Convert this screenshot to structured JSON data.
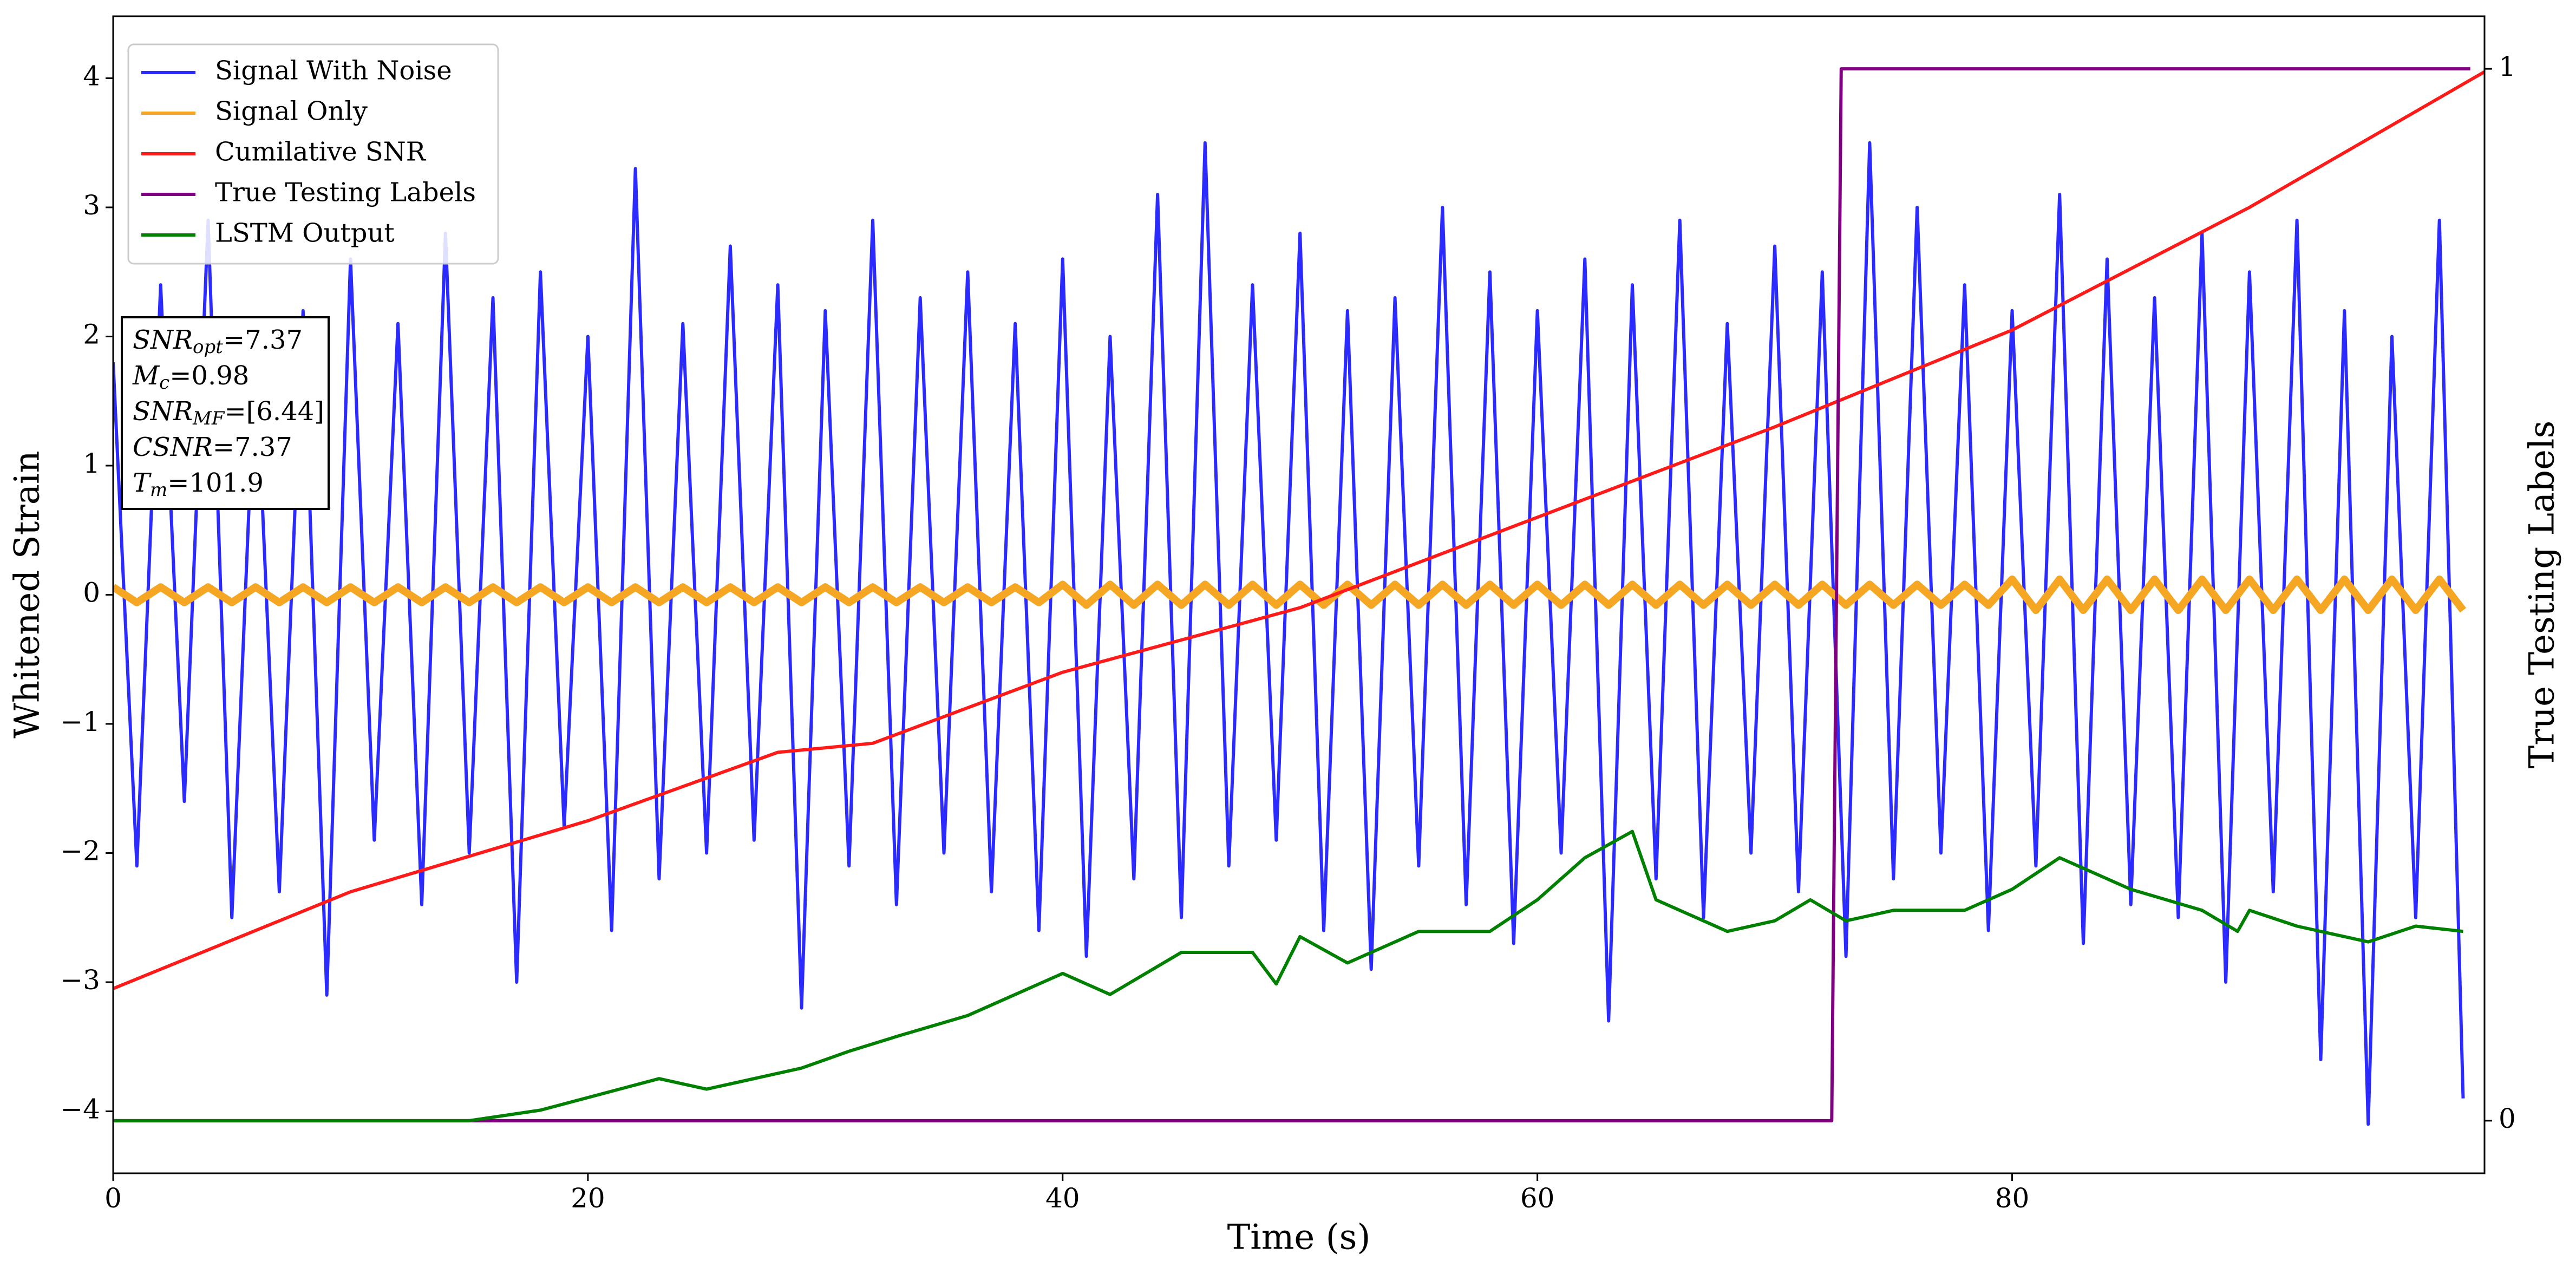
{
  "chart_data": {
    "type": "line",
    "xlabel": "Time (s)",
    "ylabel": "Whitened Strain",
    "y2label": "True Testing Labels",
    "xlim": [
      0,
      99.9
    ],
    "ylim": [
      -4.48,
      4.48
    ],
    "y2lim": [
      -0.05,
      1.05
    ],
    "xticks": [
      0,
      20,
      40,
      60,
      80
    ],
    "yticks": [
      {
        "value": -4,
        "label": "−4"
      },
      {
        "value": -3,
        "label": "−3"
      },
      {
        "value": -2,
        "label": "−2"
      },
      {
        "value": -1,
        "label": "−1"
      },
      0,
      1,
      2,
      3,
      4
    ],
    "y2ticks": [
      0,
      1
    ],
    "legend": "upper left",
    "annotations": [
      {
        "text": "SNR",
        "sub": "opt",
        "value": "=7.37"
      },
      {
        "text": "M",
        "sub": "c",
        "value": "=0.98"
      },
      {
        "text": "SNR",
        "sub": "MF",
        "value": "=[6.44]"
      },
      {
        "text": "CSNR",
        "value": "=7.37"
      },
      {
        "text": "T",
        "sub": "m",
        "value": "=101.9"
      }
    ],
    "series": [
      {
        "name": "Signal With Noise",
        "color": "#2b2bff",
        "x": [
          0,
          1,
          2,
          3,
          4,
          5,
          6,
          7,
          8,
          9,
          10,
          11,
          12,
          13,
          14,
          15,
          16,
          17,
          18,
          19,
          20,
          21,
          22,
          23,
          24,
          25,
          26,
          27,
          28,
          29,
          30,
          31,
          32,
          33,
          34,
          35,
          36,
          37,
          38,
          39,
          40,
          41,
          42,
          43,
          44,
          45,
          46,
          47,
          48,
          49,
          50,
          51,
          52,
          53,
          54,
          55,
          56,
          57,
          58,
          59,
          60,
          61,
          62,
          63,
          64,
          65,
          66,
          67,
          68,
          69,
          70,
          71,
          72,
          73,
          74,
          75,
          76,
          77,
          78,
          79,
          80,
          81,
          82,
          83,
          84,
          85,
          86,
          87,
          88,
          89,
          90,
          91,
          92,
          93,
          94,
          95,
          96,
          97,
          98,
          99
        ],
        "values": [
          1.8,
          -2.1,
          2.4,
          -1.6,
          2.9,
          -2.5,
          1.9,
          -2.3,
          2.2,
          -3.1,
          2.6,
          -1.9,
          2.1,
          -2.4,
          2.8,
          -2.0,
          2.3,
          -3.0,
          2.5,
          -1.8,
          2.0,
          -2.6,
          3.3,
          -2.2,
          2.1,
          -2.0,
          2.7,
          -1.9,
          2.4,
          -3.2,
          2.2,
          -2.1,
          2.9,
          -2.4,
          2.3,
          -2.0,
          2.5,
          -2.3,
          2.1,
          -2.6,
          2.6,
          -2.8,
          2.0,
          -2.2,
          3.1,
          -2.5,
          3.5,
          -2.1,
          2.4,
          -1.9,
          2.8,
          -2.6,
          2.2,
          -2.9,
          2.3,
          -2.1,
          3.0,
          -2.4,
          2.5,
          -2.7,
          2.2,
          -2.0,
          2.6,
          -3.3,
          2.4,
          -2.2,
          2.9,
          -2.5,
          2.1,
          -2.0,
          2.7,
          -2.3,
          2.5,
          -2.8,
          3.5,
          -2.2,
          3.0,
          -2.0,
          2.4,
          -2.6,
          2.2,
          -2.1,
          3.1,
          -2.7,
          2.6,
          -2.4,
          2.3,
          -2.5,
          2.8,
          -3.0,
          2.5,
          -2.3,
          2.9,
          -3.6,
          2.2,
          -4.1,
          2.0,
          -2.5,
          2.9,
          -3.9
        ]
      },
      {
        "name": "Signal Only",
        "color": "#f5a623",
        "x": [
          0,
          1,
          2,
          3,
          4,
          5,
          6,
          7,
          8,
          9,
          10,
          11,
          12,
          13,
          14,
          15,
          16,
          17,
          18,
          19,
          20,
          21,
          22,
          23,
          24,
          25,
          26,
          27,
          28,
          29,
          30,
          31,
          32,
          33,
          34,
          35,
          36,
          37,
          38,
          39,
          40,
          41,
          42,
          43,
          44,
          45,
          46,
          47,
          48,
          49,
          50,
          51,
          52,
          53,
          54,
          55,
          56,
          57,
          58,
          59,
          60,
          61,
          62,
          63,
          64,
          65,
          66,
          67,
          68,
          69,
          70,
          71,
          72,
          73,
          74,
          75,
          76,
          77,
          78,
          79,
          80,
          81,
          82,
          83,
          84,
          85,
          86,
          87,
          88,
          89,
          90,
          91,
          92,
          93,
          94,
          95,
          96,
          97,
          98,
          99
        ],
        "values": [
          0.06,
          -0.06,
          0.06,
          -0.06,
          0.06,
          -0.06,
          0.06,
          -0.06,
          0.06,
          -0.06,
          0.06,
          -0.06,
          0.06,
          -0.06,
          0.06,
          -0.06,
          0.06,
          -0.06,
          0.06,
          -0.06,
          0.06,
          -0.06,
          0.06,
          -0.06,
          0.06,
          -0.06,
          0.06,
          -0.06,
          0.06,
          -0.06,
          0.06,
          -0.06,
          0.06,
          -0.06,
          0.06,
          -0.06,
          0.06,
          -0.06,
          0.06,
          -0.06,
          0.08,
          -0.08,
          0.08,
          -0.08,
          0.08,
          -0.08,
          0.08,
          -0.08,
          0.08,
          -0.08,
          0.08,
          -0.08,
          0.08,
          -0.08,
          0.08,
          -0.08,
          0.08,
          -0.08,
          0.08,
          -0.08,
          0.08,
          -0.08,
          0.08,
          -0.08,
          0.08,
          -0.08,
          0.08,
          -0.08,
          0.08,
          -0.08,
          0.08,
          -0.08,
          0.08,
          -0.08,
          0.08,
          -0.08,
          0.08,
          -0.08,
          0.08,
          -0.08,
          0.12,
          -0.12,
          0.12,
          -0.12,
          0.12,
          -0.12,
          0.12,
          -0.12,
          0.12,
          -0.12,
          0.12,
          -0.12,
          0.12,
          -0.12,
          0.12,
          -0.12,
          0.12,
          -0.12,
          0.12,
          -0.12
        ]
      },
      {
        "name": "Cumilative SNR",
        "color": "#ff1a1a",
        "x": [
          0,
          10,
          20,
          28,
          32,
          40,
          50,
          60,
          70,
          80,
          90,
          99.9
        ],
        "values": [
          -3.05,
          -2.3,
          -1.75,
          -1.22,
          -1.15,
          -0.6,
          -0.1,
          0.6,
          1.3,
          2.05,
          3.0,
          4.05
        ]
      },
      {
        "name": "True Testing Labels",
        "color": "#800080",
        "axis": "y2",
        "x": [
          0,
          72.4,
          72.8,
          99.3
        ],
        "values": [
          0,
          0,
          1,
          1
        ]
      },
      {
        "name": "LSTM Output",
        "color": "#008000",
        "axis": "y2",
        "x": [
          0,
          15,
          18,
          23,
          25,
          29,
          31,
          33,
          36,
          40,
          42,
          45,
          48,
          49,
          50,
          52,
          55,
          58,
          60,
          62,
          64,
          65,
          68,
          70,
          71.5,
          73,
          75,
          78,
          80,
          82,
          85,
          88,
          89.5,
          90,
          92,
          95,
          97,
          99
        ],
        "values": [
          0,
          0,
          0.01,
          0.04,
          0.03,
          0.05,
          0.066,
          0.08,
          0.1,
          0.14,
          0.12,
          0.16,
          0.16,
          0.13,
          0.175,
          0.15,
          0.18,
          0.18,
          0.21,
          0.25,
          0.275,
          0.21,
          0.18,
          0.19,
          0.21,
          0.19,
          0.2,
          0.2,
          0.22,
          0.25,
          0.22,
          0.2,
          0.18,
          0.2,
          0.185,
          0.17,
          0.185,
          0.18
        ]
      }
    ]
  }
}
